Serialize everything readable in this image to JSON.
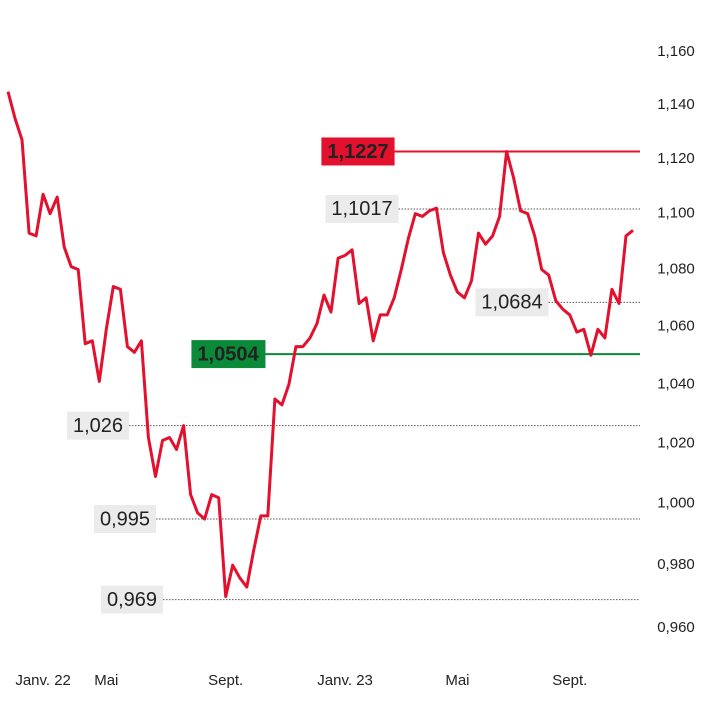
{
  "chart_data": {
    "type": "line",
    "categories": [
      null,
      null,
      null,
      null,
      null,
      "Janv. 22",
      null,
      null,
      null,
      null,
      null,
      null,
      null,
      null,
      "Mai",
      null,
      null,
      null,
      null,
      null,
      null,
      null,
      null,
      null,
      null,
      null,
      null,
      null,
      null,
      null,
      null,
      "Sept.",
      null,
      null,
      null,
      null,
      null,
      null,
      null,
      null,
      null,
      null,
      null,
      null,
      null,
      null,
      null,
      null,
      "Janv. 23",
      null,
      null,
      null,
      null,
      null,
      null,
      null,
      null,
      null,
      null,
      null,
      null,
      null,
      null,
      null,
      "Mai",
      null,
      null,
      null,
      null,
      null,
      null,
      null,
      null,
      null,
      null,
      null,
      null,
      null,
      null,
      null,
      "Sept.",
      null,
      null,
      null,
      null,
      null,
      null,
      null,
      null,
      null
    ],
    "series": [
      {
        "color": "#e3102e",
        "values": [
          1.145,
          1.135,
          1.127,
          1.093,
          1.092,
          1.107,
          1.1,
          1.106,
          1.088,
          1.081,
          1.08,
          1.054,
          1.055,
          1.041,
          1.059,
          1.074,
          1.073,
          1.053,
          1.051,
          1.055,
          1.022,
          1.009,
          1.021,
          1.022,
          1.018,
          1.026,
          1.003,
          0.997,
          0.995,
          1.003,
          1.002,
          0.97,
          0.98,
          0.976,
          0.973,
          0.985,
          0.996,
          0.996,
          1.035,
          1.033,
          1.04,
          1.053,
          1.053,
          1.056,
          1.061,
          1.071,
          1.065,
          1.084,
          1.085,
          1.087,
          1.068,
          1.07,
          1.055,
          1.064,
          1.064,
          1.07,
          1.08,
          1.091,
          1.1,
          1.099,
          1.101,
          1.102,
          1.086,
          1.078,
          1.072,
          1.07,
          1.076,
          1.093,
          1.089,
          1.092,
          1.099,
          1.1227,
          1.113,
          1.101,
          1.1,
          1.092,
          1.08,
          1.078,
          1.069,
          1.066,
          1.064,
          1.058,
          1.059,
          1.05,
          1.059,
          1.056,
          1.073,
          1.068,
          1.092,
          1.094
        ]
      }
    ],
    "ylim": [
      0.96,
      1.16
    ],
    "log_scale": true,
    "yticks": [
      {
        "value": 0.96,
        "label": "0,960"
      },
      {
        "value": 0.98,
        "label": "0,980"
      },
      {
        "value": 1.0,
        "label": "1,000"
      },
      {
        "value": 1.02,
        "label": "1,020"
      },
      {
        "value": 1.04,
        "label": "1,040"
      },
      {
        "value": 1.06,
        "label": "1,060"
      },
      {
        "value": 1.08,
        "label": "1,080"
      },
      {
        "value": 1.1,
        "label": "1,100"
      },
      {
        "value": 1.12,
        "label": "1,120"
      },
      {
        "value": 1.14,
        "label": "1,140"
      },
      {
        "value": 1.16,
        "label": "1,160"
      }
    ],
    "annotations": [
      {
        "value": 1.1227,
        "label": "1,1227",
        "color": "#e3102e"
      },
      {
        "value": 1.0504,
        "label": "1,0504",
        "color": "#0b8a3a"
      },
      {
        "value": 1.1017,
        "label": "1,1017",
        "color": "#ebebeb"
      },
      {
        "value": 1.0684,
        "label": "1,0684",
        "color": "#ebebeb"
      },
      {
        "value": 1.026,
        "label": "1,026",
        "color": "#ebebeb"
      },
      {
        "value": 0.995,
        "label": "0,995",
        "color": "#ebebeb"
      },
      {
        "value": 0.969,
        "label": "0,969",
        "color": "#ebebeb"
      }
    ]
  }
}
